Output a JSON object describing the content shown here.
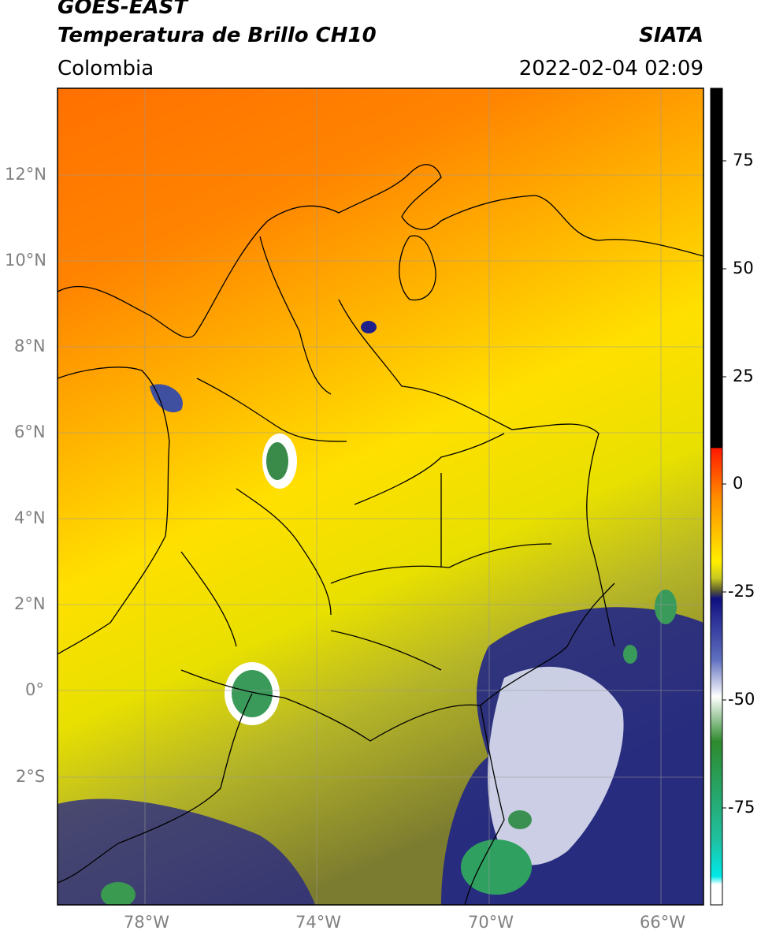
{
  "header": {
    "title_line1": "GOES-EAST",
    "title_line2": "Temperatura de Brillo CH10",
    "region": "Colombia",
    "brand": "SIATA",
    "timestamp": "2022-02-04 02:09"
  },
  "map": {
    "lat_labels": [
      "12°N",
      "10°N",
      "8°N",
      "6°N",
      "4°N",
      "2°N",
      "0°",
      "2°S"
    ],
    "lon_labels": [
      "78°W",
      "74°W",
      "70°W",
      "66°W"
    ],
    "colors": {
      "warm": "#ff7a00",
      "mid": "#ffd400",
      "cool": "#b8c030",
      "cold": "#1a1a8c",
      "coldest": "#2f8f4f",
      "border": "#000000",
      "grid": "#9a9a9a"
    }
  },
  "colorbar": {
    "labels": [
      "75",
      "50",
      "25",
      "0",
      "-25",
      "-50",
      "-75"
    ]
  }
}
